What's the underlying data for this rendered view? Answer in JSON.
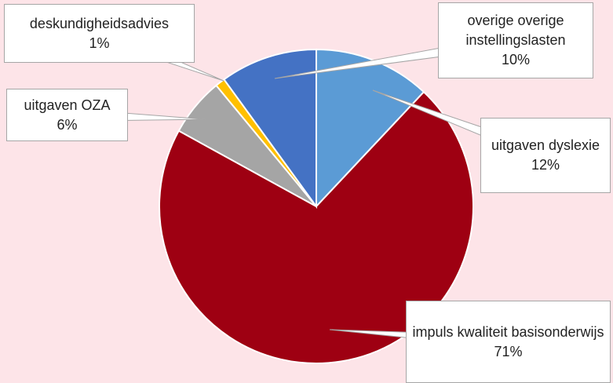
{
  "chart_data": {
    "type": "pie",
    "categories": [
      "uitgaven dyslexie",
      "impuls kwaliteit basisonderwijs",
      "uitgaven OZA",
      "deskundigheidsadvies",
      "overige overige instellingslasten"
    ],
    "values": [
      12,
      71,
      6,
      1,
      10
    ],
    "value_labels": [
      "12%",
      "71%",
      "6%",
      "1%",
      "10%"
    ],
    "colors": [
      "#5b9bd5",
      "#9e0012",
      "#a5a5a5",
      "#ffc000",
      "#4472c4"
    ]
  }
}
